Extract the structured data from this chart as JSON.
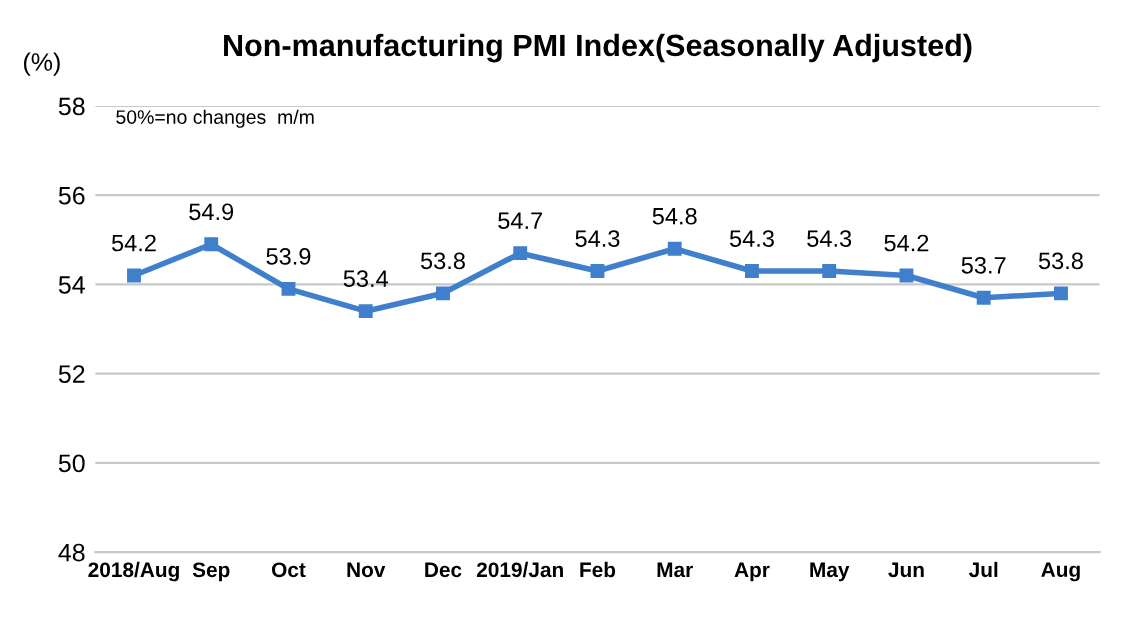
{
  "chart_data": {
    "type": "line",
    "title": "Non-manufacturing PMI Index(Seasonally Adjusted)",
    "ylabel": "(%)",
    "annotations": [
      "50%=no changes  m/m"
    ],
    "categories": [
      "2018/Aug",
      "Sep",
      "Oct",
      "Nov",
      "Dec",
      "2019/Jan",
      "Feb",
      "Mar",
      "Apr",
      "May",
      "Jun",
      "Jul",
      "Aug"
    ],
    "series": [
      {
        "color": "#3f7fcc",
        "values": [
          54.2,
          54.9,
          53.9,
          53.4,
          53.8,
          54.7,
          54.3,
          54.8,
          54.3,
          54.3,
          54.2,
          53.7,
          53.8
        ]
      }
    ],
    "ylim": [
      48,
      58
    ],
    "yticks": [
      48,
      50,
      52,
      54,
      56,
      58
    ],
    "grid": "y",
    "marker": "square",
    "line_style": "solid",
    "data_labels": true
  }
}
